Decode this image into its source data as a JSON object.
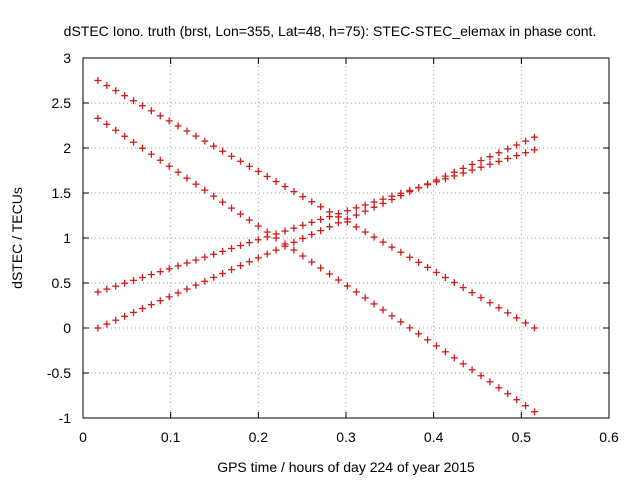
{
  "chart_data": {
    "type": "scatter",
    "title": "dSTEC Iono. truth (brst, Lon=355, Lat=48, h=75): STEC-STEC_elemax in phase cont.",
    "xlabel": "GPS time / hours of day 224 of year 2015",
    "ylabel": "dSTEC  / TECUs",
    "xlim": [
      0,
      0.6
    ],
    "ylim": [
      -1,
      3
    ],
    "xticks": [
      "0",
      "0.1",
      "0.2",
      "0.3",
      "0.4",
      "0.5",
      "0.6"
    ],
    "yticks": [
      "-1",
      "-0.5",
      "0",
      "0.5",
      "1",
      "1.5",
      "2",
      "2.5",
      "3"
    ],
    "grid": true,
    "marker": "+",
    "color": "#d11a1a",
    "series": [
      {
        "x_range": [
          0.017,
          0.515
        ],
        "y_start": 2.75,
        "y_end": 0.0,
        "count": 50
      },
      {
        "x_range": [
          0.017,
          0.515
        ],
        "y_start": 2.33,
        "y_end": -0.93,
        "count": 50
      },
      {
        "x_range": [
          0.017,
          0.515
        ],
        "y_start": 0.0,
        "y_end": 2.12,
        "count": 50
      },
      {
        "x_range": [
          0.017,
          0.515
        ],
        "y_start": 0.4,
        "y_end": 1.98,
        "count": 50
      }
    ]
  }
}
